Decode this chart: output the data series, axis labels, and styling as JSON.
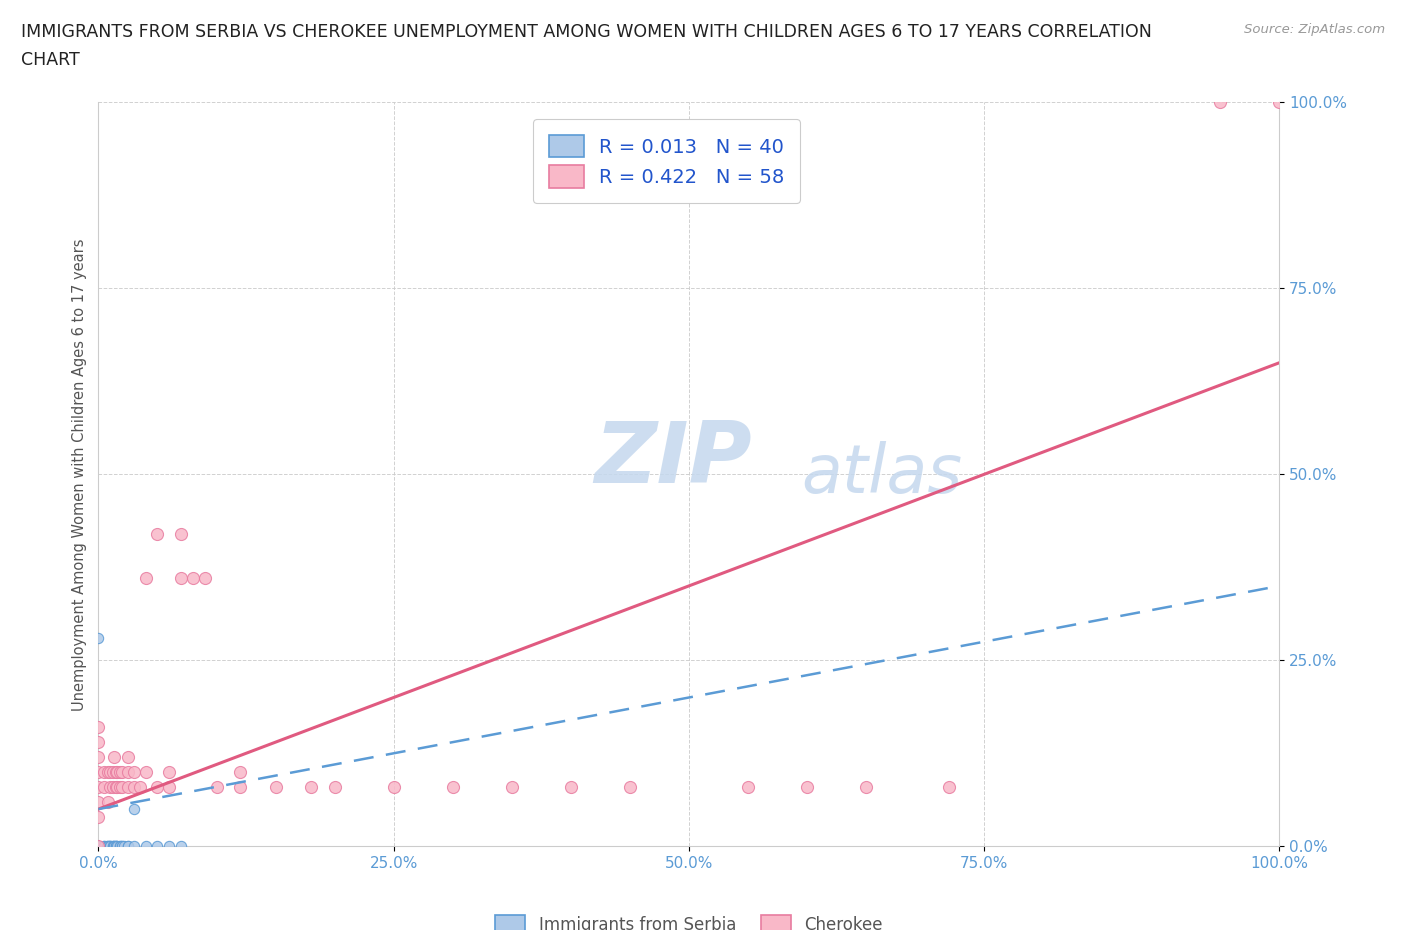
{
  "title_line1": "IMMIGRANTS FROM SERBIA VS CHEROKEE UNEMPLOYMENT AMONG WOMEN WITH CHILDREN AGES 6 TO 17 YEARS CORRELATION",
  "title_line2": "CHART",
  "source": "Source: ZipAtlas.com",
  "ylabel": "Unemployment Among Women with Children Ages 6 to 17 years",
  "xlim": [
    0.0,
    1.0
  ],
  "ylim": [
    0.0,
    1.0
  ],
  "xticks": [
    0.0,
    0.25,
    0.5,
    0.75,
    1.0
  ],
  "yticks": [
    0.0,
    0.25,
    0.5,
    0.75,
    1.0
  ],
  "xticklabels": [
    "0.0%",
    "25.0%",
    "50.0%",
    "75.0%",
    "100.0%"
  ],
  "yticklabels": [
    "0.0%",
    "25.0%",
    "50.0%",
    "75.0%",
    "100.0%"
  ],
  "serbia_color": "#aec9e8",
  "cherokee_color": "#f9b8c8",
  "serbia_edge_color": "#5b9bd5",
  "cherokee_edge_color": "#e87ca0",
  "serbia_line_color": "#5b9bd5",
  "cherokee_line_color": "#e05a80",
  "serbia_R": 0.013,
  "serbia_N": 40,
  "cherokee_R": 0.422,
  "cherokee_N": 58,
  "legend_label_serbia": "Immigrants from Serbia",
  "legend_label_cherokee": "Cherokee",
  "watermark_color": "#c5d8ee",
  "serbia_points": [
    [
      0.0,
      0.0
    ],
    [
      0.0,
      0.0
    ],
    [
      0.0,
      0.0
    ],
    [
      0.0,
      0.0
    ],
    [
      0.0,
      0.0
    ],
    [
      0.0,
      0.0
    ],
    [
      0.0,
      0.0
    ],
    [
      0.0,
      0.0
    ],
    [
      0.0,
      0.0
    ],
    [
      0.0,
      0.0
    ],
    [
      0.005,
      0.0
    ],
    [
      0.005,
      0.0
    ],
    [
      0.007,
      0.0
    ],
    [
      0.008,
      0.0
    ],
    [
      0.008,
      0.0
    ],
    [
      0.01,
      0.0
    ],
    [
      0.01,
      0.0
    ],
    [
      0.01,
      0.0
    ],
    [
      0.012,
      0.0
    ],
    [
      0.012,
      0.0
    ],
    [
      0.013,
      0.0
    ],
    [
      0.013,
      0.0
    ],
    [
      0.015,
      0.0
    ],
    [
      0.015,
      0.0
    ],
    [
      0.015,
      0.0
    ],
    [
      0.016,
      0.0
    ],
    [
      0.018,
      0.0
    ],
    [
      0.018,
      0.0
    ],
    [
      0.02,
      0.0
    ],
    [
      0.02,
      0.0
    ],
    [
      0.022,
      0.0
    ],
    [
      0.025,
      0.0
    ],
    [
      0.025,
      0.0
    ],
    [
      0.03,
      0.0
    ],
    [
      0.03,
      0.05
    ],
    [
      0.04,
      0.0
    ],
    [
      0.05,
      0.0
    ],
    [
      0.06,
      0.0
    ],
    [
      0.07,
      0.0
    ],
    [
      0.0,
      0.28
    ]
  ],
  "cherokee_points": [
    [
      0.0,
      0.0
    ],
    [
      0.0,
      0.04
    ],
    [
      0.0,
      0.06
    ],
    [
      0.0,
      0.08
    ],
    [
      0.0,
      0.1
    ],
    [
      0.0,
      0.12
    ],
    [
      0.0,
      0.14
    ],
    [
      0.0,
      0.16
    ],
    [
      0.005,
      0.08
    ],
    [
      0.005,
      0.1
    ],
    [
      0.008,
      0.06
    ],
    [
      0.008,
      0.1
    ],
    [
      0.01,
      0.08
    ],
    [
      0.01,
      0.1
    ],
    [
      0.012,
      0.08
    ],
    [
      0.012,
      0.1
    ],
    [
      0.013,
      0.12
    ],
    [
      0.015,
      0.08
    ],
    [
      0.015,
      0.1
    ],
    [
      0.016,
      0.08
    ],
    [
      0.016,
      0.1
    ],
    [
      0.018,
      0.08
    ],
    [
      0.018,
      0.1
    ],
    [
      0.02,
      0.08
    ],
    [
      0.02,
      0.1
    ],
    [
      0.025,
      0.08
    ],
    [
      0.025,
      0.1
    ],
    [
      0.025,
      0.12
    ],
    [
      0.03,
      0.08
    ],
    [
      0.03,
      0.1
    ],
    [
      0.035,
      0.08
    ],
    [
      0.04,
      0.36
    ],
    [
      0.04,
      0.1
    ],
    [
      0.05,
      0.08
    ],
    [
      0.05,
      0.42
    ],
    [
      0.06,
      0.08
    ],
    [
      0.06,
      0.1
    ],
    [
      0.07,
      0.36
    ],
    [
      0.07,
      0.42
    ],
    [
      0.08,
      0.36
    ],
    [
      0.09,
      0.36
    ],
    [
      0.1,
      0.08
    ],
    [
      0.12,
      0.08
    ],
    [
      0.12,
      0.1
    ],
    [
      0.15,
      0.08
    ],
    [
      0.18,
      0.08
    ],
    [
      0.2,
      0.08
    ],
    [
      0.25,
      0.08
    ],
    [
      0.3,
      0.08
    ],
    [
      0.35,
      0.08
    ],
    [
      0.4,
      0.08
    ],
    [
      0.45,
      0.08
    ],
    [
      0.55,
      0.08
    ],
    [
      0.6,
      0.08
    ],
    [
      0.65,
      0.08
    ],
    [
      0.72,
      0.08
    ],
    [
      0.95,
      1.0
    ],
    [
      1.0,
      1.0
    ]
  ],
  "cherokee_line": [
    0.0,
    0.05,
    1.0,
    0.65
  ],
  "serbia_line": [
    0.0,
    0.05,
    1.0,
    0.35
  ]
}
